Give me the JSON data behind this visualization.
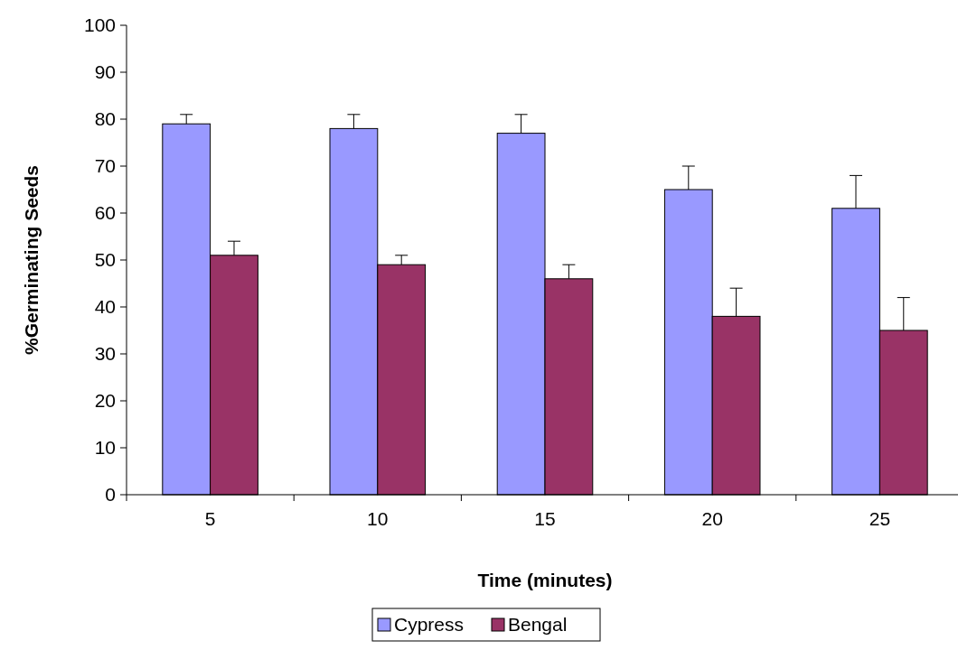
{
  "chart_data": {
    "type": "bar",
    "xlabel": "Time (minutes)",
    "ylabel": "%Germinating Seeds",
    "categories": [
      "5",
      "10",
      "15",
      "20",
      "25"
    ],
    "ylim": [
      0,
      100
    ],
    "yticks": [
      0,
      10,
      20,
      30,
      40,
      50,
      60,
      70,
      80,
      90,
      100
    ],
    "grid": false,
    "legend": "bottom",
    "series": [
      {
        "name": "Cypress",
        "color": "#9999ff",
        "values": [
          79,
          78,
          77,
          65,
          61
        ],
        "errors": [
          [
            79,
            81
          ],
          [
            78,
            81
          ],
          [
            77,
            81
          ],
          [
            65,
            70
          ],
          [
            61,
            68
          ]
        ]
      },
      {
        "name": "Bengal",
        "color": "#993366",
        "values": [
          51,
          49,
          46,
          38,
          35
        ],
        "errors": [
          [
            51,
            54
          ],
          [
            49,
            51
          ],
          [
            46,
            49
          ],
          [
            38,
            44
          ],
          [
            35,
            42
          ]
        ]
      }
    ]
  }
}
